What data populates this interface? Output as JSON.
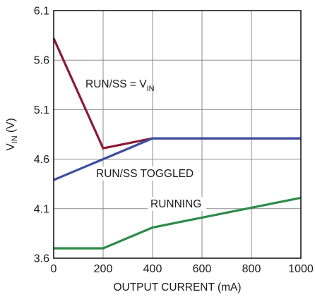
{
  "chart_data": {
    "type": "line",
    "xlabel": "OUTPUT CURRENT (mA)",
    "ylabel_main": "V",
    "ylabel_sub": "IN",
    "ylabel_unit": " (V)",
    "xlim": [
      0,
      1000
    ],
    "ylim": [
      3.6,
      6.1
    ],
    "xticks": [
      0,
      200,
      400,
      600,
      800,
      1000
    ],
    "yticks": [
      3.6,
      4.1,
      4.6,
      5.1,
      5.6,
      6.1
    ],
    "xtick_labels": [
      "0",
      "200",
      "400",
      "600",
      "800",
      "1000"
    ],
    "ytick_labels": [
      "3.6",
      "4.1",
      "4.6",
      "5.1",
      "5.6",
      "6.1"
    ],
    "grid": true,
    "series": [
      {
        "name": "RUN/SS = VIN",
        "color": "#8b1a35",
        "x": [
          0,
          200,
          400,
          1000
        ],
        "y": [
          5.82,
          4.71,
          4.81,
          4.81
        ]
      },
      {
        "name": "RUN/SS TOGGLED",
        "color": "#3d4fa0",
        "x": [
          0,
          200,
          400,
          1000
        ],
        "y": [
          4.39,
          4.6,
          4.81,
          4.81
        ]
      },
      {
        "name": "RUNNING",
        "color": "#2e8b4a",
        "x": [
          0,
          200,
          400,
          600,
          800,
          1000
        ],
        "y": [
          3.7,
          3.7,
          3.91,
          4.01,
          4.11,
          4.21
        ]
      }
    ],
    "annotations": {
      "runss_vin_main": "RUN/SS = V",
      "runss_vin_sub": "IN",
      "runss_toggled": "RUN/SS TOGGLED",
      "running": "RUNNING"
    }
  }
}
